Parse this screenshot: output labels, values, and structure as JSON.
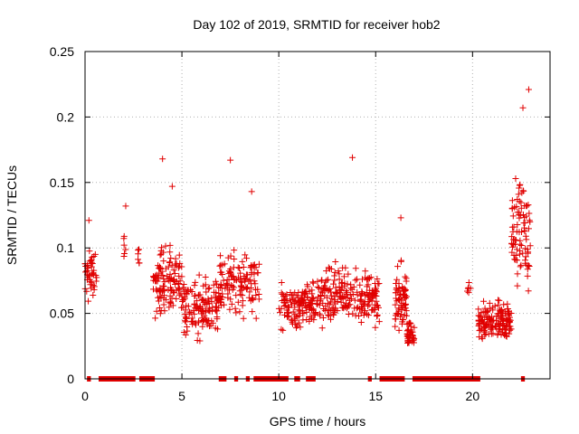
{
  "chart_data": {
    "type": "scatter",
    "title": "Day 102 of 2019, SRMTID for receiver hob2",
    "xlabel": "GPS time / hours",
    "ylabel": "SRMTID / TECUs",
    "xlim": [
      0,
      24
    ],
    "ylim": [
      0,
      0.25
    ],
    "xticks": [
      0,
      5,
      10,
      15,
      20
    ],
    "xtick_labels": [
      "0",
      "5",
      "10",
      "15",
      "20"
    ],
    "yticks": [
      0,
      0.05,
      0.1,
      0.15,
      0.2,
      0.25
    ],
    "ytick_labels": [
      "0",
      "0.05",
      "0.1",
      "0.15",
      "0.2",
      "0.25"
    ],
    "grid": true,
    "marker": "+",
    "series_color": "#e00000",
    "clusters": [
      {
        "x0": 0.0,
        "x1": 0.6,
        "center": 0.08,
        "spread": 0.025,
        "n": 45
      },
      {
        "x0": 2.0,
        "x1": 2.1,
        "center": 0.1,
        "spread": 0.02,
        "n": 6
      },
      {
        "x0": 2.7,
        "x1": 2.8,
        "center": 0.09,
        "spread": 0.02,
        "n": 6
      },
      {
        "x0": 3.5,
        "x1": 5.0,
        "center": 0.075,
        "spread": 0.035,
        "n": 120
      },
      {
        "x0": 5.0,
        "x1": 6.9,
        "center": 0.055,
        "spread": 0.03,
        "n": 140
      },
      {
        "x0": 6.9,
        "x1": 9.0,
        "center": 0.075,
        "spread": 0.035,
        "n": 130
      },
      {
        "x0": 10.0,
        "x1": 12.0,
        "center": 0.055,
        "spread": 0.025,
        "n": 140
      },
      {
        "x0": 12.0,
        "x1": 14.0,
        "center": 0.065,
        "spread": 0.03,
        "n": 130
      },
      {
        "x0": 14.0,
        "x1": 15.2,
        "center": 0.06,
        "spread": 0.03,
        "n": 90
      },
      {
        "x0": 16.0,
        "x1": 16.6,
        "center": 0.06,
        "spread": 0.035,
        "n": 70
      },
      {
        "x0": 16.6,
        "x1": 17.0,
        "center": 0.035,
        "spread": 0.015,
        "n": 40
      },
      {
        "x0": 19.7,
        "x1": 19.9,
        "center": 0.07,
        "spread": 0.008,
        "n": 6
      },
      {
        "x0": 20.3,
        "x1": 22.0,
        "center": 0.045,
        "spread": 0.02,
        "n": 160
      },
      {
        "x0": 22.0,
        "x1": 23.0,
        "center": 0.11,
        "spread": 0.06,
        "n": 90
      }
    ],
    "outliers": [
      {
        "x": 0.2,
        "y": 0.121
      },
      {
        "x": 2.1,
        "y": 0.132
      },
      {
        "x": 4.0,
        "y": 0.168
      },
      {
        "x": 4.5,
        "y": 0.147
      },
      {
        "x": 7.5,
        "y": 0.167
      },
      {
        "x": 8.6,
        "y": 0.143
      },
      {
        "x": 13.8,
        "y": 0.169
      },
      {
        "x": 16.3,
        "y": 0.123
      },
      {
        "x": 22.6,
        "y": 0.207
      },
      {
        "x": 22.9,
        "y": 0.221
      }
    ],
    "zero_level_segments": [
      [
        0.1,
        0.3
      ],
      [
        0.7,
        2.6
      ],
      [
        2.8,
        3.6
      ],
      [
        6.9,
        7.3
      ],
      [
        7.7,
        7.9
      ],
      [
        8.3,
        8.5
      ],
      [
        8.7,
        10.5
      ],
      [
        10.8,
        11.1
      ],
      [
        11.4,
        11.9
      ],
      [
        14.6,
        14.8
      ],
      [
        15.2,
        16.5
      ],
      [
        16.9,
        20.4
      ],
      [
        22.5,
        22.7
      ]
    ]
  }
}
